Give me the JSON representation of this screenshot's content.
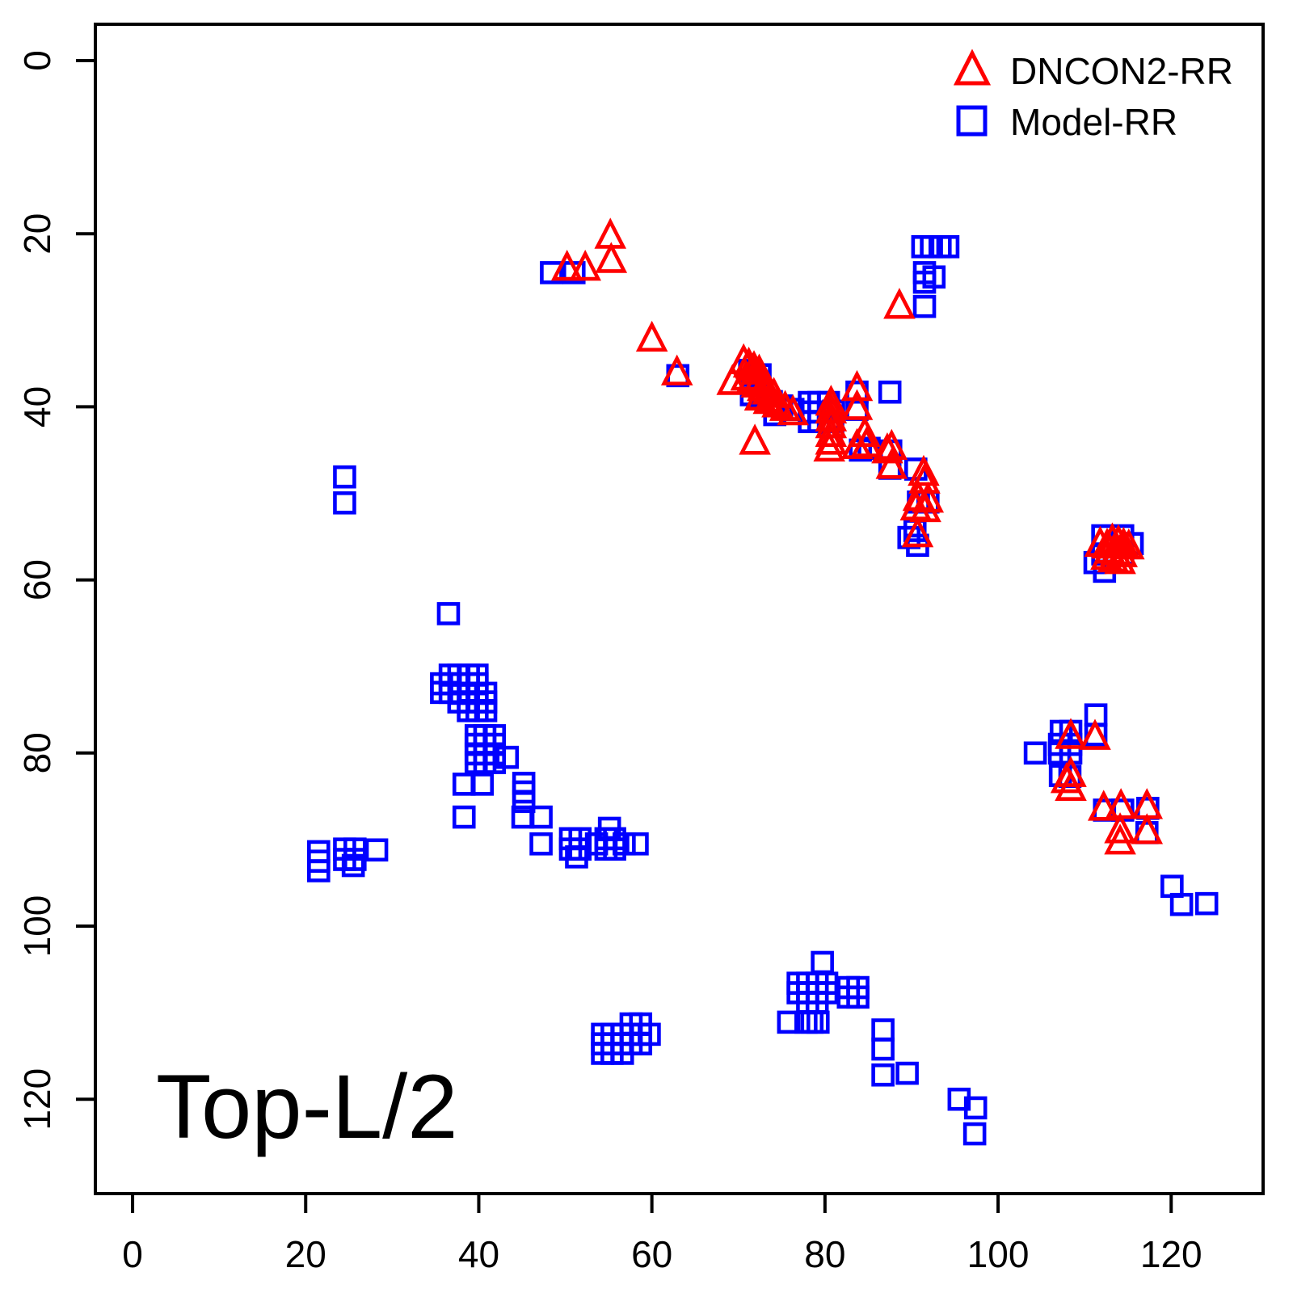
{
  "chart_data": {
    "type": "scatter",
    "title": "Top-L/2",
    "xlabel": "",
    "ylabel": "",
    "x_ticks": [
      0,
      20,
      40,
      60,
      80,
      100,
      120
    ],
    "y_ticks": [
      0,
      20,
      40,
      60,
      80,
      100,
      120
    ],
    "x_range": [
      -4.3,
      130.6
    ],
    "y_range": [
      -4.3,
      130.6
    ],
    "y_inverted": true,
    "grid": false,
    "legend_position": "top-right",
    "legend": [
      {
        "label": "DNCON2-RR",
        "marker": "triangle",
        "color": "#ff0000"
      },
      {
        "label": "Model-RR",
        "marker": "square",
        "color": "#0000ff"
      }
    ],
    "series": [
      {
        "name": "Model-RR",
        "marker": "square",
        "color": "#0000ff",
        "points": [
          [
            48.4,
            24.5
          ],
          [
            51.0,
            24.5
          ],
          [
            63.0,
            36.4
          ],
          [
            91.3,
            21.5
          ],
          [
            92.3,
            21.5
          ],
          [
            93.3,
            21.5
          ],
          [
            94.2,
            21.5
          ],
          [
            91.5,
            24.5
          ],
          [
            92.6,
            25.0
          ],
          [
            91.5,
            25.6
          ],
          [
            91.5,
            28.4
          ],
          [
            24.5,
            48.1
          ],
          [
            24.5,
            51.1
          ],
          [
            36.5,
            63.9
          ],
          [
            71.3,
            35.8
          ],
          [
            72.5,
            36.3
          ],
          [
            71.5,
            38.6
          ],
          [
            72.7,
            39.0
          ],
          [
            73.8,
            39.4
          ],
          [
            75.0,
            39.9
          ],
          [
            76.3,
            40.3
          ],
          [
            74.2,
            40.9
          ],
          [
            78.2,
            39.5
          ],
          [
            79.3,
            39.5
          ],
          [
            80.4,
            39.5
          ],
          [
            78.2,
            40.6
          ],
          [
            79.3,
            40.6
          ],
          [
            80.4,
            40.6
          ],
          [
            78.2,
            41.7
          ],
          [
            79.3,
            41.7
          ],
          [
            80.4,
            41.7
          ],
          [
            81.0,
            40.5
          ],
          [
            80.9,
            42.3
          ],
          [
            83.7,
            38.3
          ],
          [
            83.7,
            40.3
          ],
          [
            87.5,
            38.3
          ],
          [
            84.1,
            45.0
          ],
          [
            85.1,
            44.8
          ],
          [
            87.6,
            45.1
          ],
          [
            87.5,
            47.1
          ],
          [
            90.5,
            47.2
          ],
          [
            90.8,
            51.0
          ],
          [
            91.9,
            51.0
          ],
          [
            90.4,
            54.3
          ],
          [
            89.7,
            55.1
          ],
          [
            90.7,
            56.0
          ],
          [
            112.1,
            54.9
          ],
          [
            114.4,
            54.9
          ],
          [
            115.5,
            55.8
          ],
          [
            112.1,
            57.0
          ],
          [
            114.4,
            57.0
          ],
          [
            111.2,
            58.0
          ],
          [
            112.3,
            59.0
          ],
          [
            36.7,
            71.0
          ],
          [
            37.7,
            71.0
          ],
          [
            38.8,
            71.0
          ],
          [
            39.8,
            71.0
          ],
          [
            35.7,
            72.0
          ],
          [
            36.7,
            72.0
          ],
          [
            37.7,
            72.0
          ],
          [
            38.8,
            72.0
          ],
          [
            39.8,
            72.0
          ],
          [
            35.7,
            73.0
          ],
          [
            36.7,
            73.0
          ],
          [
            37.7,
            73.1
          ],
          [
            38.8,
            73.1
          ],
          [
            39.8,
            73.1
          ],
          [
            40.8,
            73.1
          ],
          [
            37.7,
            74.1
          ],
          [
            38.8,
            74.1
          ],
          [
            39.8,
            74.1
          ],
          [
            40.8,
            74.1
          ],
          [
            38.8,
            75.1
          ],
          [
            39.8,
            75.1
          ],
          [
            40.8,
            75.1
          ],
          [
            39.7,
            78.0
          ],
          [
            40.7,
            78.0
          ],
          [
            41.8,
            78.0
          ],
          [
            39.7,
            79.0
          ],
          [
            40.7,
            79.0
          ],
          [
            41.8,
            79.0
          ],
          [
            39.7,
            80.1
          ],
          [
            40.7,
            80.1
          ],
          [
            41.8,
            80.1
          ],
          [
            39.7,
            81.1
          ],
          [
            40.7,
            81.1
          ],
          [
            41.8,
            81.1
          ],
          [
            43.3,
            80.5
          ],
          [
            38.3,
            83.6
          ],
          [
            40.4,
            83.6
          ],
          [
            45.2,
            83.5
          ],
          [
            45.2,
            84.5
          ],
          [
            45.2,
            85.6
          ],
          [
            38.3,
            87.4
          ],
          [
            45.1,
            87.4
          ],
          [
            47.2,
            87.4
          ],
          [
            47.2,
            90.5
          ],
          [
            50.6,
            89.9
          ],
          [
            51.7,
            89.9
          ],
          [
            50.6,
            91.1
          ],
          [
            51.7,
            91.1
          ],
          [
            51.3,
            92.0
          ],
          [
            55.1,
            88.7
          ],
          [
            53.6,
            90.5
          ],
          [
            54.7,
            89.9
          ],
          [
            55.7,
            89.9
          ],
          [
            54.7,
            91.1
          ],
          [
            55.7,
            91.1
          ],
          [
            56.8,
            90.5
          ],
          [
            58.3,
            90.5
          ],
          [
            21.5,
            91.4
          ],
          [
            21.5,
            92.5
          ],
          [
            21.5,
            93.6
          ],
          [
            24.5,
            91.1
          ],
          [
            25.7,
            91.1
          ],
          [
            24.5,
            92.3
          ],
          [
            25.7,
            92.3
          ],
          [
            25.5,
            93.0
          ],
          [
            28.2,
            91.2
          ],
          [
            104.3,
            80.0
          ],
          [
            107.3,
            77.5
          ],
          [
            108.4,
            77.5
          ],
          [
            111.3,
            75.6
          ],
          [
            111.3,
            77.9
          ],
          [
            107.1,
            79.0
          ],
          [
            108.4,
            79.0
          ],
          [
            107.1,
            80.0
          ],
          [
            108.4,
            80.0
          ],
          [
            107.2,
            82.6
          ],
          [
            108.3,
            82.7
          ],
          [
            112.3,
            86.6
          ],
          [
            114.4,
            86.6
          ],
          [
            117.3,
            86.4
          ],
          [
            117.2,
            89.2
          ],
          [
            120.1,
            95.4
          ],
          [
            121.2,
            97.5
          ],
          [
            124.1,
            97.4
          ],
          [
            57.6,
            111.3
          ],
          [
            58.7,
            111.3
          ],
          [
            54.3,
            112.5
          ],
          [
            55.4,
            112.5
          ],
          [
            56.6,
            112.5
          ],
          [
            57.6,
            112.5
          ],
          [
            58.7,
            112.5
          ],
          [
            59.7,
            112.5
          ],
          [
            54.3,
            113.6
          ],
          [
            55.4,
            113.6
          ],
          [
            56.6,
            113.6
          ],
          [
            57.6,
            113.6
          ],
          [
            58.7,
            113.6
          ],
          [
            54.3,
            114.7
          ],
          [
            55.4,
            114.7
          ],
          [
            56.6,
            114.7
          ],
          [
            79.7,
            104.2
          ],
          [
            76.9,
            106.6
          ],
          [
            78.0,
            106.6
          ],
          [
            79.1,
            106.6
          ],
          [
            80.2,
            106.6
          ],
          [
            76.9,
            107.7
          ],
          [
            78.0,
            107.7
          ],
          [
            79.1,
            107.7
          ],
          [
            80.2,
            107.7
          ],
          [
            78.0,
            108.8
          ],
          [
            79.1,
            108.8
          ],
          [
            82.7,
            107.1
          ],
          [
            83.8,
            107.1
          ],
          [
            82.7,
            108.2
          ],
          [
            83.8,
            108.2
          ],
          [
            75.8,
            111.1
          ],
          [
            77.8,
            111.1
          ],
          [
            78.5,
            111.1
          ],
          [
            79.2,
            111.1
          ],
          [
            86.7,
            112.0
          ],
          [
            86.7,
            114.2
          ],
          [
            86.7,
            117.2
          ],
          [
            89.5,
            117.0
          ],
          [
            95.5,
            120.0
          ],
          [
            97.4,
            121.0
          ],
          [
            97.3,
            124.0
          ]
        ]
      },
      {
        "name": "DNCON2-RR",
        "marker": "triangle",
        "color": "#ff0000",
        "points": [
          [
            55.2,
            20.3
          ],
          [
            55.3,
            23.1
          ],
          [
            50.2,
            24.0
          ],
          [
            52.3,
            24.0
          ],
          [
            60.0,
            32.2
          ],
          [
            62.9,
            36.1
          ],
          [
            70.6,
            34.8
          ],
          [
            71.2,
            35.2
          ],
          [
            71.8,
            35.6
          ],
          [
            72.4,
            36.0
          ],
          [
            69.3,
            37.2
          ],
          [
            70.9,
            36.7
          ],
          [
            71.5,
            37.1
          ],
          [
            72.1,
            37.5
          ],
          [
            72.8,
            37.9
          ],
          [
            73.4,
            38.3
          ],
          [
            74.1,
            38.7
          ],
          [
            72.5,
            39.0
          ],
          [
            73.5,
            39.4
          ],
          [
            74.5,
            39.8
          ],
          [
            75.4,
            40.2
          ],
          [
            76.3,
            40.7
          ],
          [
            80.7,
            39.6
          ],
          [
            80.7,
            40.5
          ],
          [
            80.7,
            41.4
          ],
          [
            80.7,
            42.2
          ],
          [
            80.7,
            43.2
          ],
          [
            80.7,
            44.1
          ],
          [
            83.7,
            37.9
          ],
          [
            83.7,
            40.1
          ],
          [
            84.6,
            43.2
          ],
          [
            84.8,
            44.4
          ],
          [
            83.7,
            44.6
          ],
          [
            80.5,
            44.9
          ],
          [
            87.7,
            44.7
          ],
          [
            87.2,
            45.1
          ],
          [
            87.7,
            46.9
          ],
          [
            71.9,
            44.1
          ],
          [
            91.4,
            47.7
          ],
          [
            91.5,
            48.6
          ],
          [
            90.8,
            50.6
          ],
          [
            91.9,
            50.8
          ],
          [
            90.5,
            51.7
          ],
          [
            91.6,
            51.9
          ],
          [
            90.7,
            54.8
          ],
          [
            88.6,
            28.4
          ],
          [
            111.8,
            55.9
          ],
          [
            112.6,
            56.1
          ],
          [
            113.2,
            55.5
          ],
          [
            113.9,
            55.7
          ],
          [
            114.5,
            56.0
          ],
          [
            115.1,
            56.2
          ],
          [
            112.9,
            56.7
          ],
          [
            113.6,
            56.9
          ],
          [
            114.3,
            57.1
          ],
          [
            112.5,
            57.4
          ],
          [
            113.3,
            57.7
          ],
          [
            114.1,
            57.9
          ],
          [
            108.4,
            78.1
          ],
          [
            111.2,
            78.2
          ],
          [
            108.4,
            82.5
          ],
          [
            107.9,
            83.2
          ],
          [
            108.4,
            84.1
          ],
          [
            112.2,
            86.4
          ],
          [
            114.2,
            86.2
          ],
          [
            117.2,
            86.2
          ],
          [
            114.1,
            89.0
          ],
          [
            114.1,
            90.3
          ],
          [
            117.2,
            89.1
          ]
        ]
      }
    ]
  }
}
